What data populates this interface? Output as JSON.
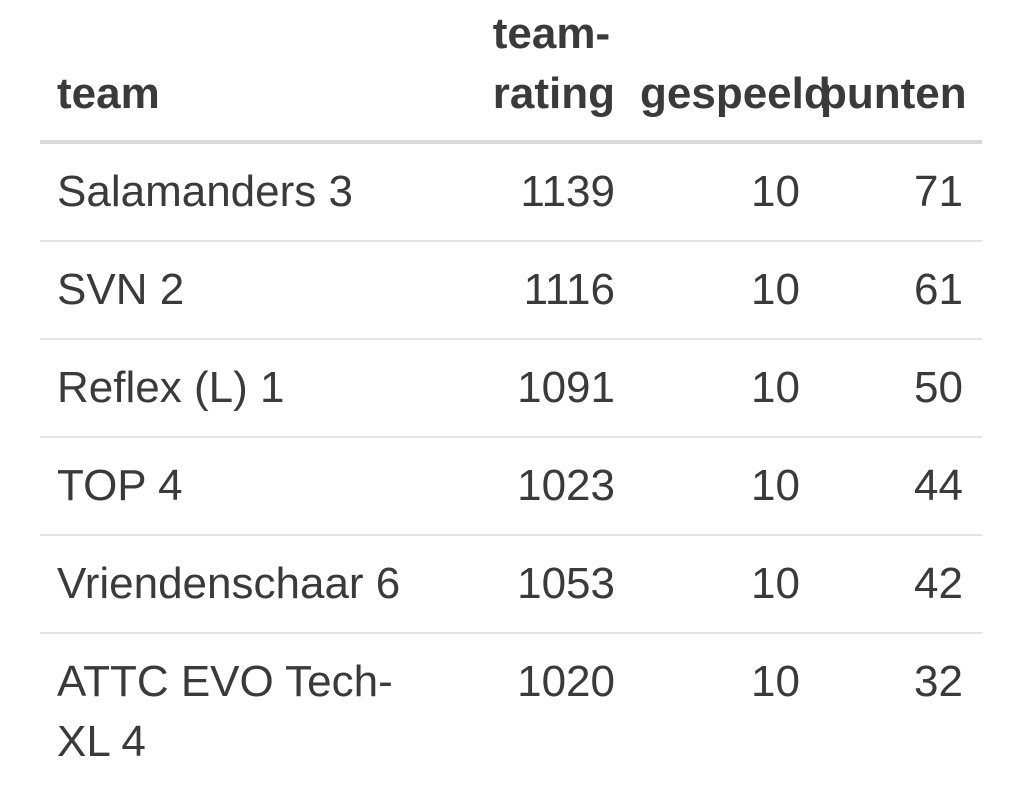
{
  "chart_data": {
    "type": "table",
    "columns": [
      "team",
      "team-rating",
      "gespeeld",
      "punten"
    ],
    "rows": [
      [
        "Salamanders 3",
        1139,
        10,
        71
      ],
      [
        "SVN 2",
        1116,
        10,
        61
      ],
      [
        "Reflex (L) 1",
        1091,
        10,
        50
      ],
      [
        "TOP 4",
        1023,
        10,
        44
      ],
      [
        "Vriendenschaar 6",
        1053,
        10,
        42
      ],
      [
        "ATTC EVO Tech-XL 4",
        1020,
        10,
        32
      ]
    ],
    "layout": {
      "header_position": "top",
      "grid": "horizontal-row-separators-only",
      "numeric_columns_alignment": "right"
    }
  },
  "colors": {
    "text": "#3a3a3a",
    "header_border": "#d9d9d9",
    "row_border": "#e3e3e3",
    "background": "#ffffff"
  }
}
